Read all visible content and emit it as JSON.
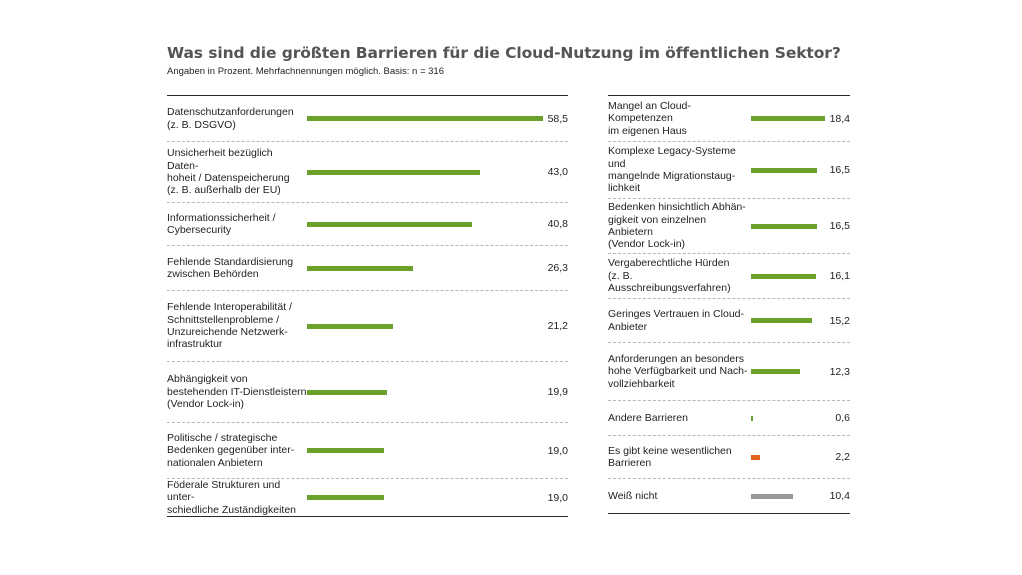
{
  "chart_data": {
    "type": "bar",
    "orientation": "horizontal",
    "title": "Was sind die größten Barrieren für die Cloud-Nutzung im öffentlichen Sektor?",
    "subtitle": "Angaben in Prozent. Mehrfachnennungen möglich. Basis: n = 316",
    "unit": "%",
    "colors": {
      "bar": "#6aa12b",
      "no_barrier": "#e0621b",
      "dont_know": "#999999"
    },
    "panels": [
      {
        "items": [
          {
            "label": "Datenschutzanforderungen\n(z. B. DSGVO)",
            "value": 58.5,
            "display": "58,5",
            "color": "bar"
          },
          {
            "label": "Unsicherheit bezüglich Daten-\nhoheit / Datenspeicherung\n(z. B. außerhalb der EU)",
            "value": 43.0,
            "display": "43,0",
            "color": "bar"
          },
          {
            "label": "Informationssicherheit /\nCybersecurity",
            "value": 40.8,
            "display": "40,8",
            "color": "bar"
          },
          {
            "label": "Fehlende Standardisierung\nzwischen Behörden",
            "value": 26.3,
            "display": "26,3",
            "color": "bar"
          },
          {
            "label": "Fehlende Interoperabilität /\nSchnittstellenprobleme /\nUnzureichende Netzwerk-\ninfrastruktur",
            "value": 21.2,
            "display": "21,2",
            "color": "bar"
          },
          {
            "label": "Abhängigkeit von\nbestehenden IT-Dienstleistern\n(Vendor Lock-in)",
            "value": 19.9,
            "display": "19,9",
            "color": "bar"
          },
          {
            "label": "Politische / strategische\nBedenken gegenüber inter-\nnationalen Anbietern",
            "value": 19.0,
            "display": "19,0",
            "color": "bar"
          },
          {
            "label": "Föderale Strukturen und unter-\nschiedliche Zuständigkeiten",
            "value": 19.0,
            "display": "19,0",
            "color": "bar"
          }
        ]
      },
      {
        "items": [
          {
            "label": "Mangel an Cloud-Kompetenzen\nim eigenen Haus",
            "value": 18.4,
            "display": "18,4",
            "color": "bar"
          },
          {
            "label": "Komplexe Legacy-Systeme und\nmangelnde Migrationstaug-\nlichkeit",
            "value": 16.5,
            "display": "16,5",
            "color": "bar"
          },
          {
            "label": "Bedenken hinsichtlich Abhän-\ngigkeit von einzelnen Anbietern\n(Vendor Lock-in)",
            "value": 16.5,
            "display": "16,5",
            "color": "bar"
          },
          {
            "label": "Vergaberechtliche Hürden\n(z. B. Ausschreibungsverfahren)",
            "value": 16.1,
            "display": "16,1",
            "color": "bar"
          },
          {
            "label": "Geringes Vertrauen in Cloud-\nAnbieter",
            "value": 15.2,
            "display": "15,2",
            "color": "bar"
          },
          {
            "label": "Anforderungen an besonders\nhohe Verfügbarkeit und Nach-\nvollziehbarkeit",
            "value": 12.3,
            "display": "12,3",
            "color": "bar"
          },
          {
            "label": "Andere Barrieren",
            "value": 0.6,
            "display": "0,6",
            "color": "bar"
          },
          {
            "label": "Es gibt keine wesentlichen\nBarrieren",
            "value": 2.2,
            "display": "2,2",
            "color": "no_barrier"
          },
          {
            "label": "Weiß nicht",
            "value": 10.4,
            "display": "10,4",
            "color": "dont_know"
          }
        ]
      }
    ]
  }
}
